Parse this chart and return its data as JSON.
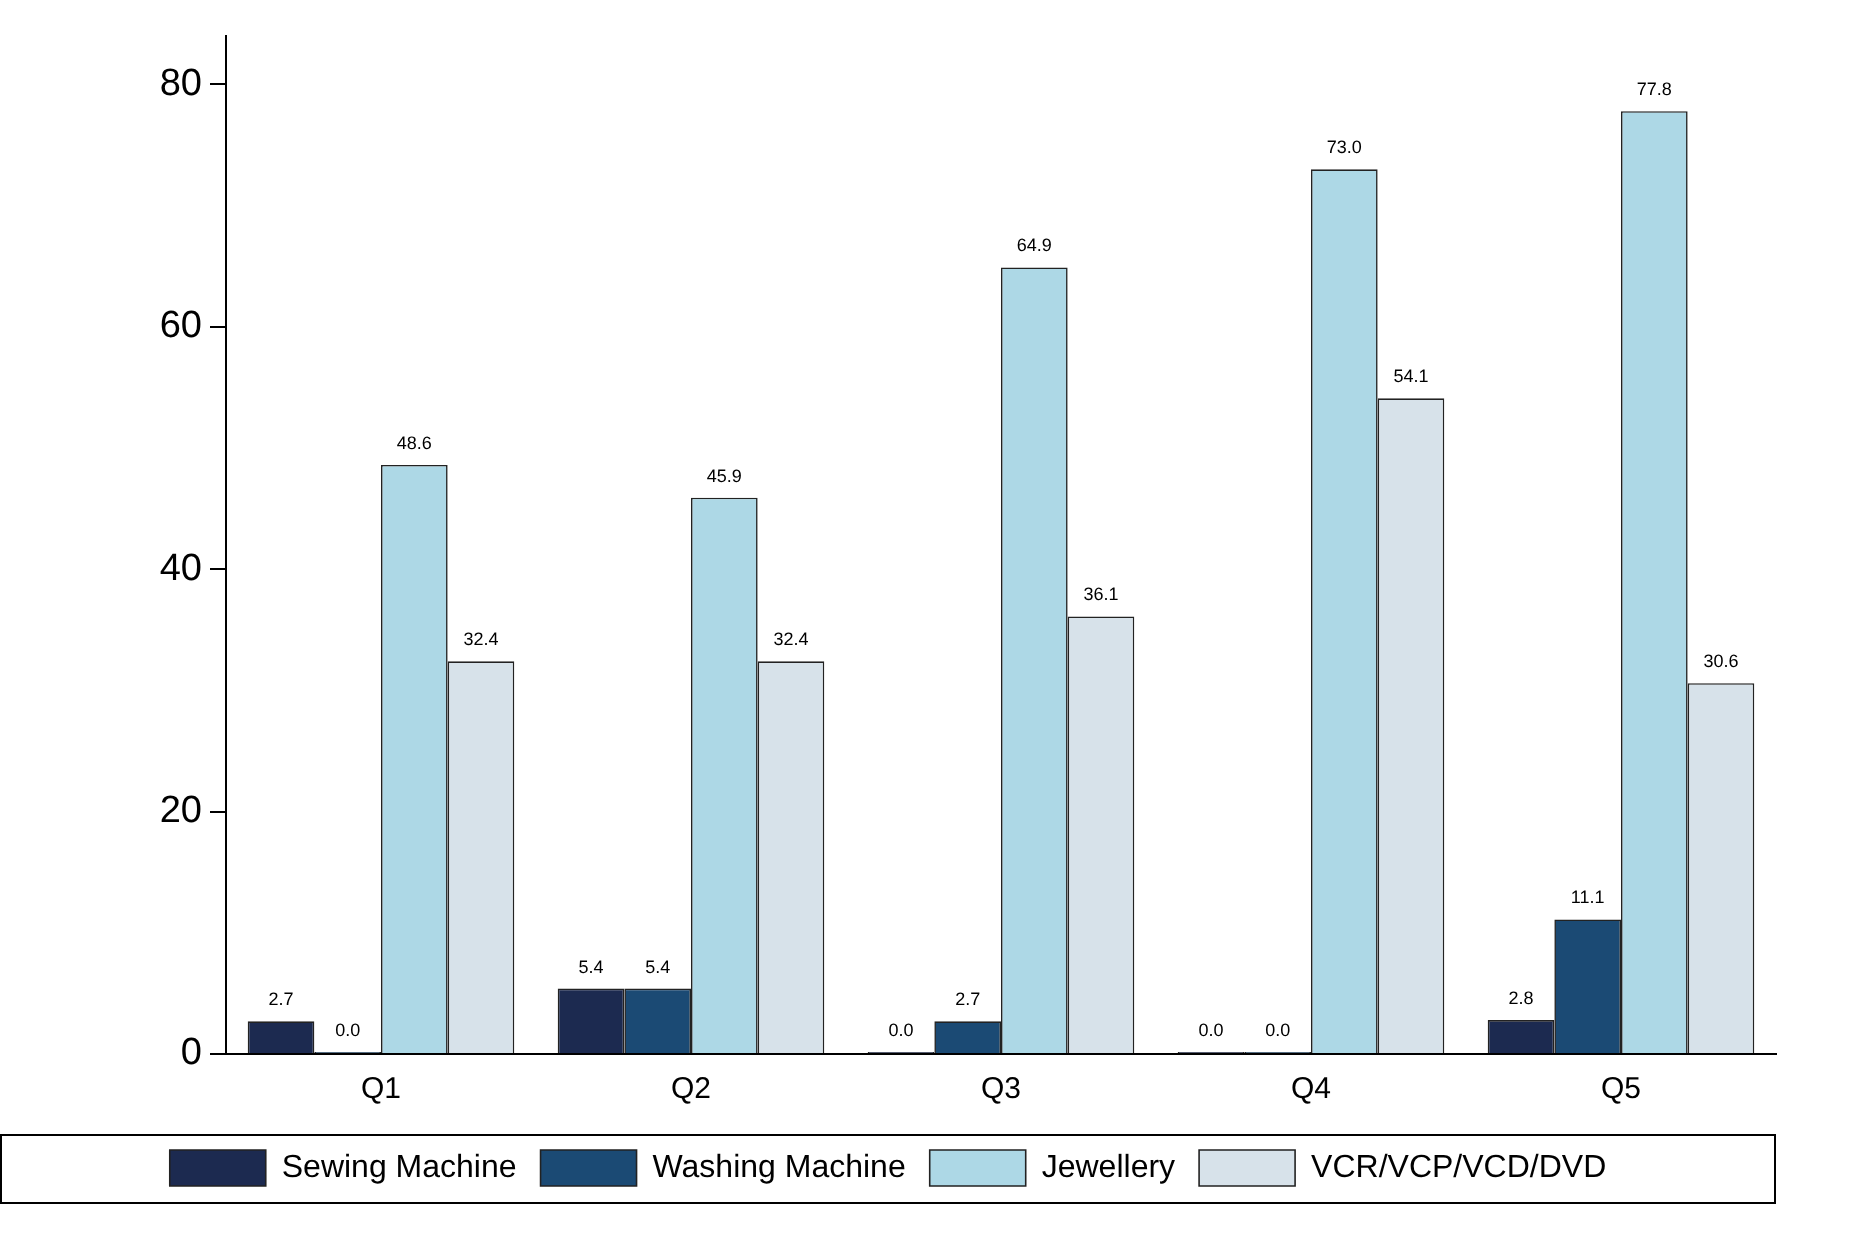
{
  "chart_data": {
    "type": "bar",
    "categories": [
      "Q1",
      "Q2",
      "Q3",
      "Q4",
      "Q5"
    ],
    "series": [
      {
        "name": "Sewing Machine",
        "color": "#1c2a50",
        "values": [
          2.7,
          5.4,
          0,
          0,
          2.8
        ],
        "value_labels": [
          "2.7",
          "5.4",
          "0.0",
          "0.0",
          "2.8"
        ]
      },
      {
        "name": "Washing Machine",
        "color": "#1b4a74",
        "values": [
          0,
          5.4,
          2.7,
          0,
          11.1
        ],
        "value_labels": [
          "0.0",
          "5.4",
          "2.7",
          "0.0",
          "11.1"
        ]
      },
      {
        "name": "Jewellery",
        "color": "#add8e6",
        "values": [
          48.6,
          45.9,
          64.9,
          73,
          77.8
        ],
        "value_labels": [
          "48.6",
          "45.9",
          "64.9",
          "73.0",
          "77.8"
        ]
      },
      {
        "name": "VCR/VCP/VCD/DVD",
        "color": "#d7e2ea",
        "values": [
          32.4,
          32.4,
          36.1,
          54.1,
          30.6
        ],
        "value_labels": [
          "32.4",
          "32.4",
          "36.1",
          "54.1",
          "30.6"
        ]
      }
    ],
    "ylim": [
      0,
      84
    ],
    "yticks": [
      0,
      20,
      40,
      60,
      80
    ],
    "grid": false,
    "legend": "bottom"
  }
}
